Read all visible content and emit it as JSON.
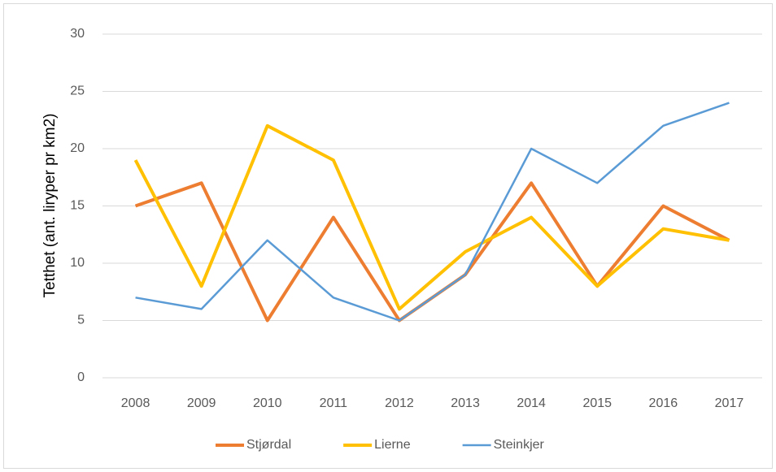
{
  "chart_data": {
    "type": "line",
    "y_label": "Tetthet (ant. liryper pr km2)",
    "categories": [
      "2008",
      "2009",
      "2010",
      "2011",
      "2012",
      "2013",
      "2014",
      "2015",
      "2016",
      "2017"
    ],
    "series": [
      {
        "name": "Stjørdal",
        "color": "#ED7D31",
        "values": [
          15,
          17,
          5,
          14,
          5,
          9,
          17,
          8,
          15,
          12
        ]
      },
      {
        "name": "Lierne",
        "color": "#FFC000",
        "values": [
          19,
          8,
          22,
          19,
          6,
          11,
          14,
          8,
          13,
          12
        ]
      },
      {
        "name": "Steinkjer",
        "color": "#5B9BD5",
        "values": [
          7,
          6,
          12,
          7,
          5,
          9,
          20,
          17,
          22,
          24
        ]
      }
    ],
    "ylim": [
      0,
      30
    ],
    "yticks": [
      0,
      5,
      10,
      15,
      20,
      25,
      30
    ],
    "grid": true,
    "legend": "bottom"
  }
}
